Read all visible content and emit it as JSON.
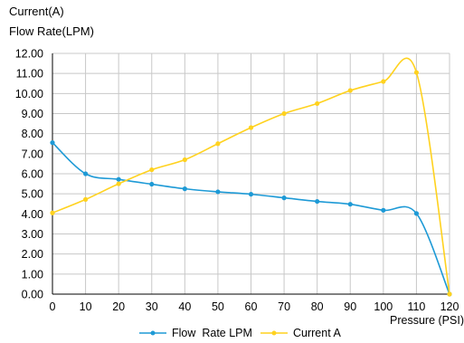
{
  "chart_data": {
    "type": "line",
    "ylabel_line1": "Current(A)",
    "ylabel_line2": "Flow Rate(LPM)",
    "xlabel": "Pressure (PSI)",
    "xlim": [
      0,
      120
    ],
    "ylim": [
      0,
      12
    ],
    "x_ticks": [
      "0",
      "10",
      "20",
      "30",
      "40",
      "50",
      "60",
      "70",
      "80",
      "90",
      "100",
      "110",
      "120"
    ],
    "y_ticks": [
      "0.00",
      "1.00",
      "2.00",
      "3.00",
      "4.00",
      "5.00",
      "6.00",
      "7.00",
      "8.00",
      "9.00",
      "10.00",
      "11.00",
      "12.00"
    ],
    "grid": true,
    "legend_position": "bottom",
    "series": [
      {
        "name": "Flow  Rate LPM",
        "color": "#1e9ad6",
        "marker": "circle",
        "x": [
          0,
          10,
          20,
          30,
          40,
          50,
          60,
          70,
          80,
          90,
          100,
          110,
          120
        ],
        "y": [
          7.55,
          6.0,
          5.72,
          5.48,
          5.25,
          5.1,
          4.98,
          4.8,
          4.62,
          4.48,
          4.18,
          4.02,
          0.0
        ]
      },
      {
        "name": "Current A",
        "color": "#ffd21f",
        "marker": "circle",
        "x": [
          0,
          10,
          20,
          30,
          40,
          50,
          60,
          70,
          80,
          90,
          100,
          110,
          120
        ],
        "y": [
          4.05,
          4.72,
          5.5,
          6.2,
          6.7,
          7.5,
          8.3,
          9.0,
          9.5,
          10.15,
          10.6,
          11.05,
          0.0
        ]
      }
    ]
  }
}
